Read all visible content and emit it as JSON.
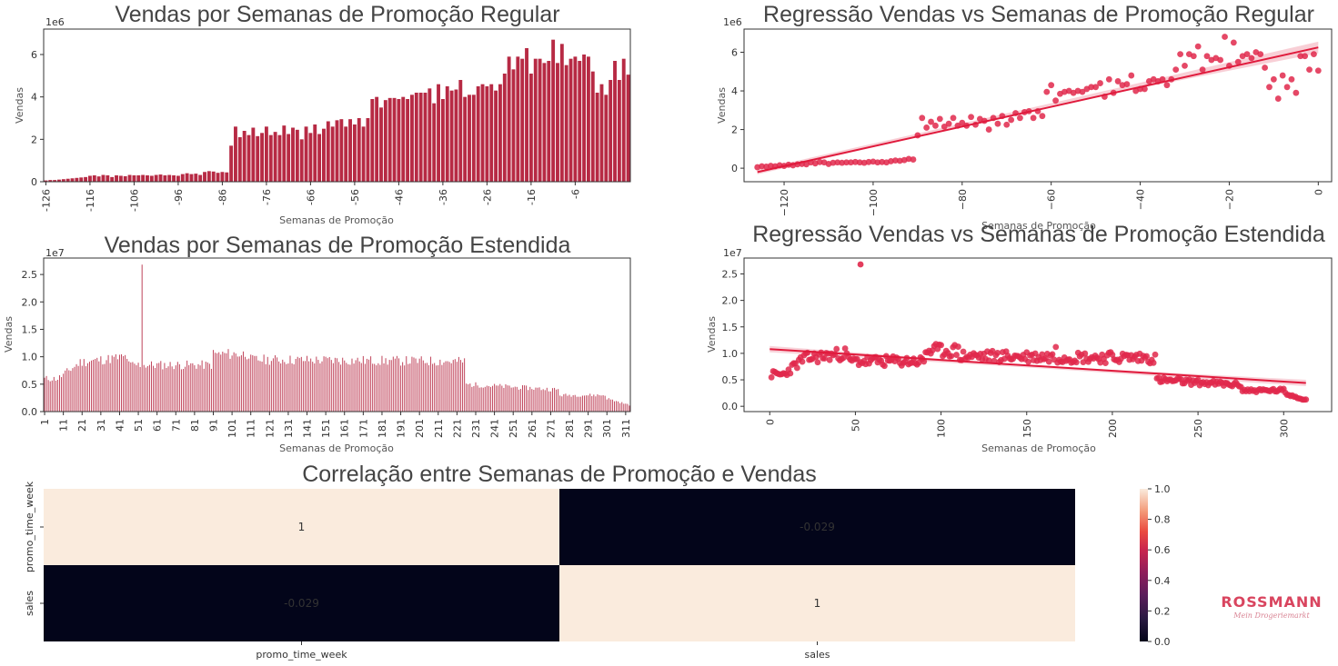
{
  "colors": {
    "bar": "#b72a44",
    "point": "#e0284b",
    "line": "#e01a3c",
    "ci": "#f2a8b5"
  },
  "logo": {
    "name": "ROSSMANN",
    "tagline": "Mein Drogeriemarkt"
  },
  "chart_data": [
    {
      "id": "bar_regular",
      "type": "bar",
      "title": "Vendas por Semanas de Promoção Regular",
      "xlabel": "Semanas de Promoção",
      "ylabel": "Vendas",
      "offset_label": "1e6",
      "ylim": [
        0,
        7.2
      ],
      "yticks": [
        0,
        2,
        4,
        6
      ],
      "xticks": [
        "-126",
        "-116",
        "-106",
        "-96",
        "-86",
        "-76",
        "-66",
        "-56",
        "-46",
        "-36",
        "-26",
        "-16",
        "-6"
      ],
      "x_start": -126,
      "x_end": 0,
      "values": [
        0.06,
        0.08,
        0.08,
        0.1,
        0.12,
        0.14,
        0.16,
        0.18,
        0.2,
        0.22,
        0.28,
        0.3,
        0.25,
        0.32,
        0.3,
        0.22,
        0.3,
        0.28,
        0.26,
        0.32,
        0.3,
        0.3,
        0.32,
        0.3,
        0.28,
        0.32,
        0.34,
        0.3,
        0.32,
        0.3,
        0.28,
        0.36,
        0.4,
        0.36,
        0.38,
        0.32,
        0.46,
        0.5,
        0.48,
        0.42,
        0.46,
        0.44,
        1.7,
        2.6,
        2.1,
        2.4,
        2.2,
        2.55,
        2.15,
        2.3,
        2.6,
        2.2,
        2.35,
        2.2,
        2.65,
        2.25,
        2.55,
        2.45,
        2.0,
        2.6,
        2.3,
        2.7,
        2.25,
        2.5,
        2.85,
        2.6,
        2.9,
        2.95,
        2.6,
        2.95,
        2.7,
        3.0,
        2.6,
        3.0,
        3.9,
        4.0,
        3.5,
        3.85,
        3.95,
        3.95,
        3.9,
        4.0,
        3.9,
        4.1,
        4.2,
        4.2,
        4.2,
        4.4,
        3.7,
        4.6,
        3.9,
        4.5,
        4.3,
        4.35,
        4.8,
        4.0,
        4.1,
        4.1,
        4.5,
        4.6,
        4.5,
        4.6,
        4.3,
        4.6,
        5.1,
        5.9,
        5.3,
        5.9,
        5.8,
        6.3,
        5.1,
        5.8,
        5.8,
        5.6,
        5.7,
        6.7,
        5.6,
        6.5,
        5.5,
        5.8,
        5.9,
        5.7,
        6.0,
        5.9,
        5.2,
        4.2,
        4.6,
        4.1,
        4.8,
        5.7,
        4.8,
        5.8,
        5.05
      ]
    },
    {
      "id": "reg_regular",
      "type": "scatter",
      "title": "Regressão Vendas vs Semanas de Promoção Regular",
      "xlabel": "Semanas de Promoção",
      "ylabel": "Vendas",
      "offset_label": "1e6",
      "xlim": [
        -129,
        3
      ],
      "ylim": [
        -0.7,
        7.2
      ],
      "xticks": [
        -120,
        -100,
        -80,
        -60,
        -40,
        -20,
        0
      ],
      "yticks": [
        0,
        2,
        4,
        6
      ],
      "fit": {
        "x": [
          -126,
          0
        ],
        "y": [
          -0.2,
          6.25
        ]
      },
      "points": [
        [
          -126,
          0.05
        ],
        [
          -125,
          0.1
        ],
        [
          -124,
          0.08
        ],
        [
          -123,
          0.12
        ],
        [
          -122,
          0.1
        ],
        [
          -121,
          0.15
        ],
        [
          -120,
          0.12
        ],
        [
          -119,
          0.18
        ],
        [
          -118,
          0.15
        ],
        [
          -117,
          0.2
        ],
        [
          -116,
          0.22
        ],
        [
          -115,
          0.2
        ],
        [
          -114,
          0.3
        ],
        [
          -113,
          0.25
        ],
        [
          -112,
          0.32
        ],
        [
          -111,
          0.3
        ],
        [
          -110,
          0.22
        ],
        [
          -109,
          0.28
        ],
        [
          -108,
          0.3
        ],
        [
          -107,
          0.28
        ],
        [
          -106,
          0.3
        ],
        [
          -105,
          0.3
        ],
        [
          -104,
          0.32
        ],
        [
          -103,
          0.3
        ],
        [
          -102,
          0.28
        ],
        [
          -101,
          0.32
        ],
        [
          -100,
          0.34
        ],
        [
          -99,
          0.3
        ],
        [
          -98,
          0.32
        ],
        [
          -97,
          0.3
        ],
        [
          -96,
          0.36
        ],
        [
          -95,
          0.4
        ],
        [
          -94,
          0.38
        ],
        [
          -93,
          0.42
        ],
        [
          -92,
          0.48
        ],
        [
          -91,
          0.45
        ],
        [
          -90,
          1.7
        ],
        [
          -89,
          2.6
        ],
        [
          -88,
          2.1
        ],
        [
          -87,
          2.4
        ],
        [
          -86,
          2.2
        ],
        [
          -85,
          2.55
        ],
        [
          -84,
          2.15
        ],
        [
          -83,
          2.3
        ],
        [
          -82,
          2.6
        ],
        [
          -81,
          2.2
        ],
        [
          -80,
          2.35
        ],
        [
          -79,
          2.2
        ],
        [
          -78,
          2.65
        ],
        [
          -77,
          2.25
        ],
        [
          -76,
          2.55
        ],
        [
          -75,
          2.45
        ],
        [
          -74,
          2.0
        ],
        [
          -73,
          2.6
        ],
        [
          -72,
          2.3
        ],
        [
          -71,
          2.7
        ],
        [
          -70,
          2.25
        ],
        [
          -69,
          2.5
        ],
        [
          -68,
          2.85
        ],
        [
          -67,
          2.6
        ],
        [
          -66,
          2.9
        ],
        [
          -65,
          2.95
        ],
        [
          -64,
          2.6
        ],
        [
          -63,
          2.95
        ],
        [
          -62,
          2.7
        ],
        [
          -61,
          3.95
        ],
        [
          -60,
          4.3
        ],
        [
          -59,
          3.5
        ],
        [
          -58,
          3.85
        ],
        [
          -57,
          3.95
        ],
        [
          -56,
          4.0
        ],
        [
          -55,
          3.9
        ],
        [
          -54,
          4.0
        ],
        [
          -53,
          3.95
        ],
        [
          -52,
          4.1
        ],
        [
          -51,
          4.2
        ],
        [
          -50,
          4.2
        ],
        [
          -49,
          4.4
        ],
        [
          -48,
          3.7
        ],
        [
          -47,
          4.6
        ],
        [
          -46,
          3.9
        ],
        [
          -45,
          4.5
        ],
        [
          -44,
          4.3
        ],
        [
          -43,
          4.35
        ],
        [
          -42,
          4.8
        ],
        [
          -41,
          4.0
        ],
        [
          -40,
          4.1
        ],
        [
          -39,
          4.1
        ],
        [
          -38,
          4.5
        ],
        [
          -37,
          4.6
        ],
        [
          -36,
          4.5
        ],
        [
          -35,
          4.6
        ],
        [
          -34,
          4.3
        ],
        [
          -33,
          4.6
        ],
        [
          -32,
          5.1
        ],
        [
          -31,
          5.9
        ],
        [
          -30,
          5.3
        ],
        [
          -29,
          5.9
        ],
        [
          -28,
          5.8
        ],
        [
          -27,
          6.3
        ],
        [
          -26,
          5.1
        ],
        [
          -25,
          5.8
        ],
        [
          -24,
          5.6
        ],
        [
          -23,
          5.7
        ],
        [
          -22,
          5.6
        ],
        [
          -21,
          6.8
        ],
        [
          -20,
          5.3
        ],
        [
          -19,
          6.5
        ],
        [
          -18,
          5.5
        ],
        [
          -17,
          5.8
        ],
        [
          -16,
          5.9
        ],
        [
          -15,
          5.7
        ],
        [
          -14,
          6.0
        ],
        [
          -13,
          5.9
        ],
        [
          -12,
          5.2
        ],
        [
          -11,
          4.2
        ],
        [
          -10,
          4.6
        ],
        [
          -9,
          3.6
        ],
        [
          -8,
          4.8
        ],
        [
          -7,
          4.2
        ],
        [
          -6,
          4.6
        ],
        [
          -5,
          3.9
        ],
        [
          -4,
          5.8
        ],
        [
          -3,
          5.8
        ],
        [
          -2,
          5.1
        ],
        [
          -1,
          5.9
        ],
        [
          0,
          5.05
        ]
      ]
    },
    {
      "id": "bar_extended",
      "type": "bar",
      "title": "Vendas por Semanas de Promoção Estendida",
      "xlabel": "Semanas de Promoção",
      "ylabel": "Vendas",
      "offset_label": "1e7",
      "ylim": [
        0,
        2.8
      ],
      "yticks": [
        "0.0",
        "0.5",
        "1.0",
        "1.5",
        "2.0",
        "2.5"
      ],
      "xticks": [
        "1",
        "11",
        "21",
        "31",
        "41",
        "51",
        "61",
        "71",
        "81",
        "91",
        "101",
        "111",
        "121",
        "131",
        "141",
        "151",
        "161",
        "171",
        "181",
        "191",
        "201",
        "211",
        "221",
        "231",
        "241",
        "251",
        "261",
        "271",
        "281",
        "291",
        "301",
        "311"
      ],
      "x_start": 1,
      "x_end": 313,
      "spike": {
        "x": 53,
        "value": 2.68
      }
    },
    {
      "id": "reg_extended",
      "type": "scatter",
      "title": "Regressão Vendas vs Semanas de Promoção Estendida",
      "xlabel": "Semanas de Promoção",
      "ylabel": "Vendas",
      "offset_label": "1e7",
      "xlim": [
        -15,
        328
      ],
      "ylim": [
        -0.1,
        2.8
      ],
      "xticks": [
        0,
        50,
        100,
        150,
        200,
        250,
        300
      ],
      "yticks": [
        "0.0",
        "0.5",
        "1.0",
        "1.5",
        "2.0",
        "2.5"
      ],
      "fit": {
        "x": [
          0,
          313
        ],
        "y": [
          1.08,
          0.44
        ]
      },
      "outlier": {
        "x": 53,
        "value": 2.68
      }
    },
    {
      "id": "heatmap",
      "type": "heatmap",
      "title": "Correlação entre Semanas de Promoção e Vendas",
      "rows": [
        "promo_time_week",
        "sales"
      ],
      "cols": [
        "promo_time_week",
        "sales"
      ],
      "values": [
        [
          1,
          -0.029
        ],
        [
          -0.029,
          1
        ]
      ],
      "labels": [
        [
          "1",
          "-0.029"
        ],
        [
          "-0.029",
          "1"
        ]
      ],
      "colorbar": {
        "min": 0.0,
        "max": 1.0,
        "ticks": [
          "0.0",
          "0.2",
          "0.4",
          "0.6",
          "0.8",
          "1.0"
        ]
      }
    }
  ]
}
